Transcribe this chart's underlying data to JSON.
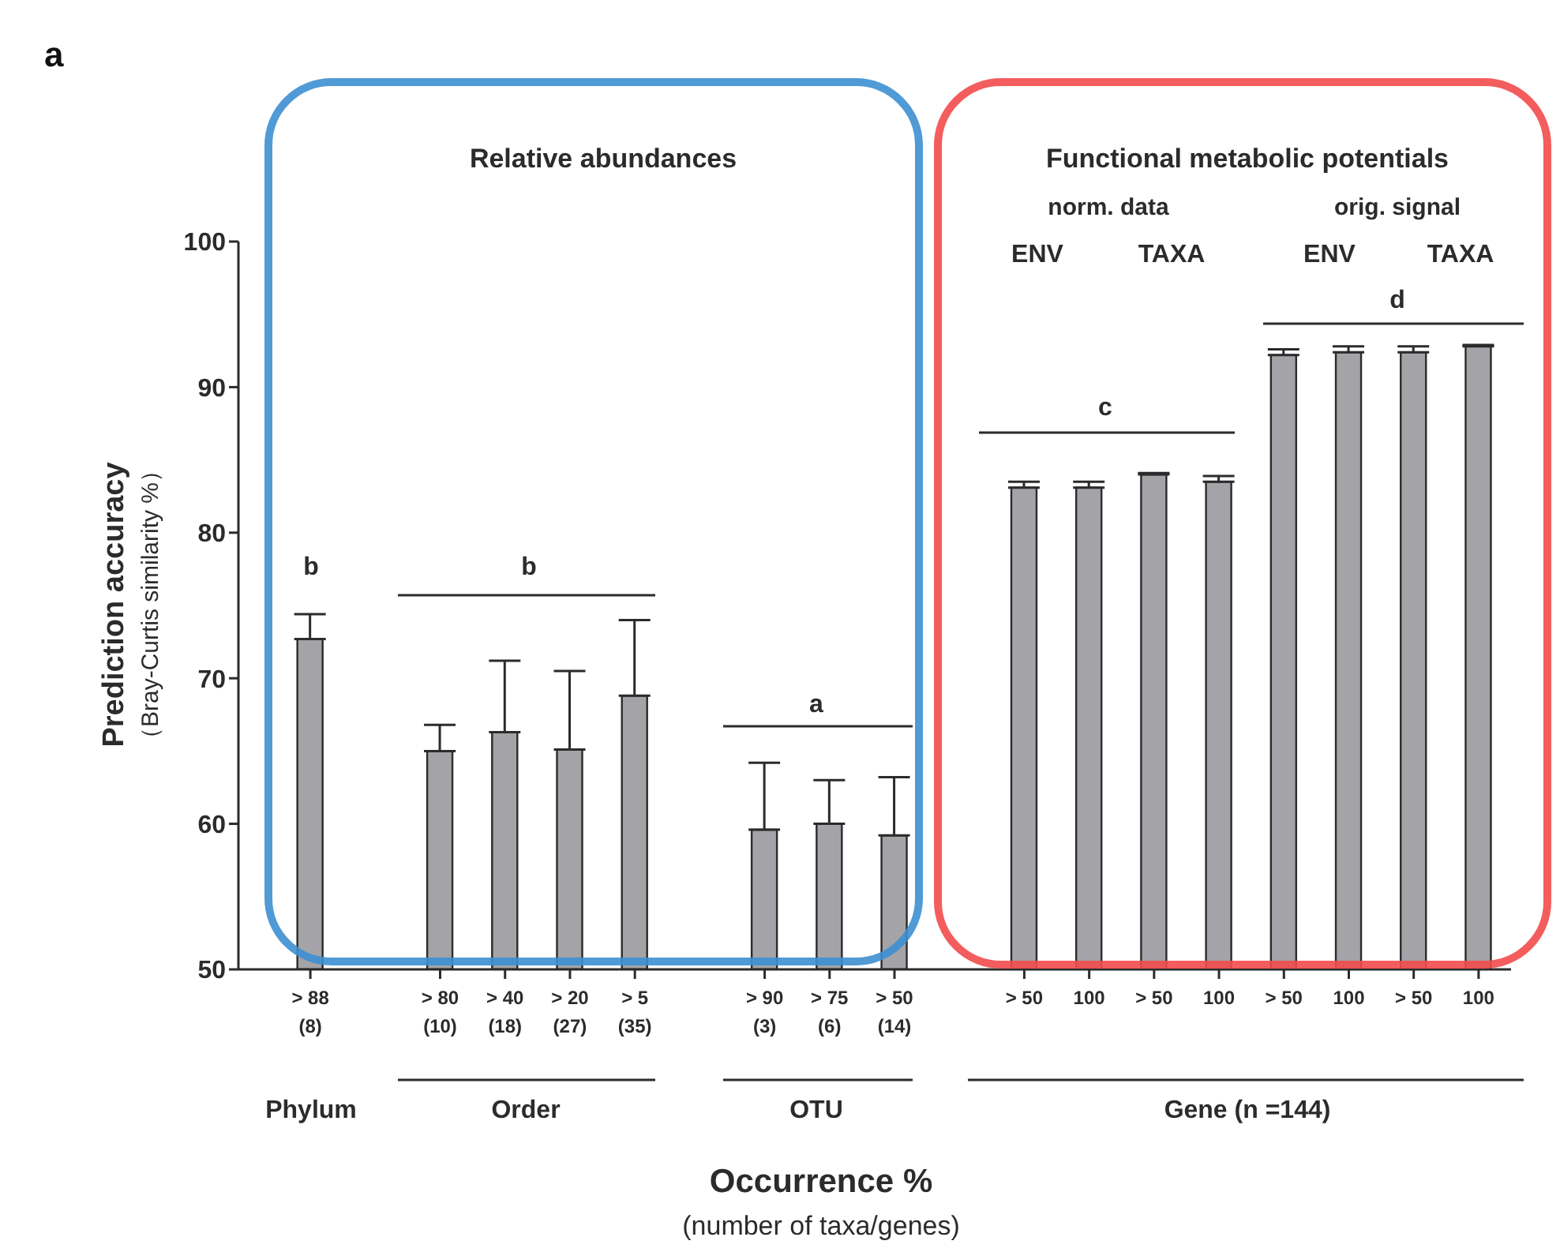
{
  "chart_data": {
    "type": "bar",
    "title": "a",
    "xlabel": "Occurrence %",
    "ylabel": "Prediction accuracy",
    "categories": [
      "> 88\n(8)",
      null,
      "> 80\n(10)",
      "> 40\n(18)",
      "> 20\n(27)",
      "> 5\n(35)",
      null,
      "> 90\n(3)",
      "> 75\n(6)",
      "> 50\n(14)",
      null,
      "> 50",
      "100",
      "> 50",
      "100",
      "> 50",
      "100",
      "> 50",
      "100"
    ],
    "values": [
      72.7,
      null,
      65.0,
      66.3,
      65.1,
      68.8,
      null,
      59.6,
      60.0,
      59.2,
      null,
      83.1,
      83.1,
      84.0,
      83.5,
      92.2,
      92.4,
      92.4,
      92.8
    ],
    "errors": [
      1.7,
      null,
      1.8,
      4.9,
      5.4,
      5.2,
      null,
      4.6,
      3.0,
      4.0,
      null,
      0.4,
      0.4,
      0.1,
      0.4,
      0.4,
      0.4,
      0.4,
      0.1
    ],
    "color": "#a4a4a8",
    "ylim": [
      50,
      100
    ],
    "yticks": [
      50,
      60,
      70,
      80,
      90,
      100
    ],
    "annotations": [
      "Relative abundances",
      "Functional metabolic potentials",
      "norm. data",
      "orig. signal",
      "ENV",
      "TAXA",
      "ENV",
      "TAXA",
      "b",
      "b",
      "a",
      "c",
      "d",
      "Phylum",
      "Order",
      "OTU",
      "Gene (n =144)",
      "（Bray-Curtis similarity %）",
      "(number of taxa/genes)"
    ]
  }
}
